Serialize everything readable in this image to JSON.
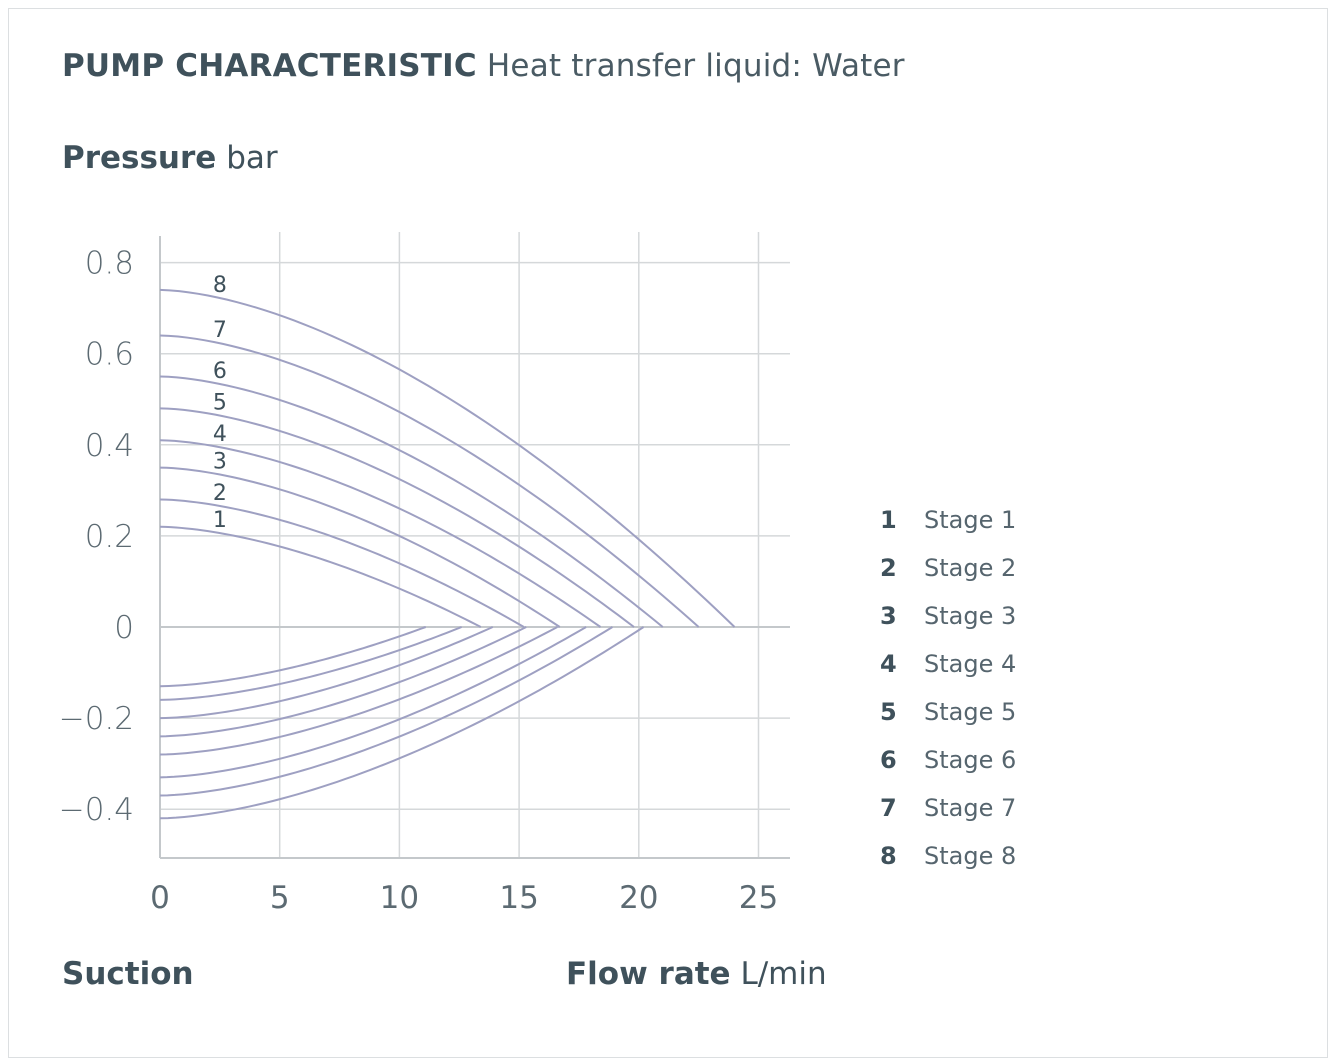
{
  "header": {
    "title_bold": "PUMP CHARACTERISTIC",
    "title_light": "Heat transfer liquid: Water"
  },
  "axes": {
    "y_label_bold": "Pressure",
    "y_unit": "bar",
    "x_label_bold": "Flow rate",
    "x_unit": "L/min",
    "suction_label": "Suction"
  },
  "legend": [
    {
      "num": "1",
      "label": "Stage 1"
    },
    {
      "num": "2",
      "label": "Stage 2"
    },
    {
      "num": "3",
      "label": "Stage 3"
    },
    {
      "num": "4",
      "label": "Stage 4"
    },
    {
      "num": "5",
      "label": "Stage 5"
    },
    {
      "num": "6",
      "label": "Stage 6"
    },
    {
      "num": "7",
      "label": "Stage 7"
    },
    {
      "num": "8",
      "label": "Stage 8"
    }
  ],
  "colors": {
    "curve": "#9ea0c2",
    "grid": "#d5d8da",
    "axis": "#c4c8cb",
    "tick_text": "#5c6a72",
    "label_text": "#3f515b"
  },
  "chart_data": {
    "type": "line",
    "xlim": [
      0,
      26
    ],
    "ylim": [
      -0.5,
      0.8
    ],
    "x_ticks": [
      0,
      5,
      10,
      15,
      20,
      25
    ],
    "y_ticks": [
      0.8,
      0.6,
      0.4,
      0.2,
      0,
      -0.2,
      -0.4
    ],
    "x_tick_labels": [
      "0",
      "5",
      "10",
      "15",
      "20",
      "25"
    ],
    "y_tick_labels": [
      "0.8",
      "0.6",
      "0.4",
      "0.2",
      "0",
      "−0.2",
      "−0.4"
    ],
    "grid": true,
    "series": [
      {
        "label": "1",
        "pressure_at_zero": 0.22,
        "max_flow": 13.4,
        "suction_at_zero": -0.13,
        "suction_max_flow": 11.1
      },
      {
        "label": "2",
        "pressure_at_zero": 0.28,
        "max_flow": 15.2,
        "suction_at_zero": -0.16,
        "suction_max_flow": 12.6
      },
      {
        "label": "3",
        "pressure_at_zero": 0.35,
        "max_flow": 16.7,
        "suction_at_zero": -0.2,
        "suction_max_flow": 13.9
      },
      {
        "label": "4",
        "pressure_at_zero": 0.41,
        "max_flow": 18.4,
        "suction_at_zero": -0.24,
        "suction_max_flow": 15.3
      },
      {
        "label": "5",
        "pressure_at_zero": 0.48,
        "max_flow": 19.8,
        "suction_at_zero": -0.28,
        "suction_max_flow": 16.6
      },
      {
        "label": "6",
        "pressure_at_zero": 0.55,
        "max_flow": 21.0,
        "suction_at_zero": -0.33,
        "suction_max_flow": 17.8
      },
      {
        "label": "7",
        "pressure_at_zero": 0.64,
        "max_flow": 22.5,
        "suction_at_zero": -0.37,
        "suction_max_flow": 18.9
      },
      {
        "label": "8",
        "pressure_at_zero": 0.74,
        "max_flow": 24.0,
        "suction_at_zero": -0.42,
        "suction_max_flow": 20.2
      }
    ]
  }
}
